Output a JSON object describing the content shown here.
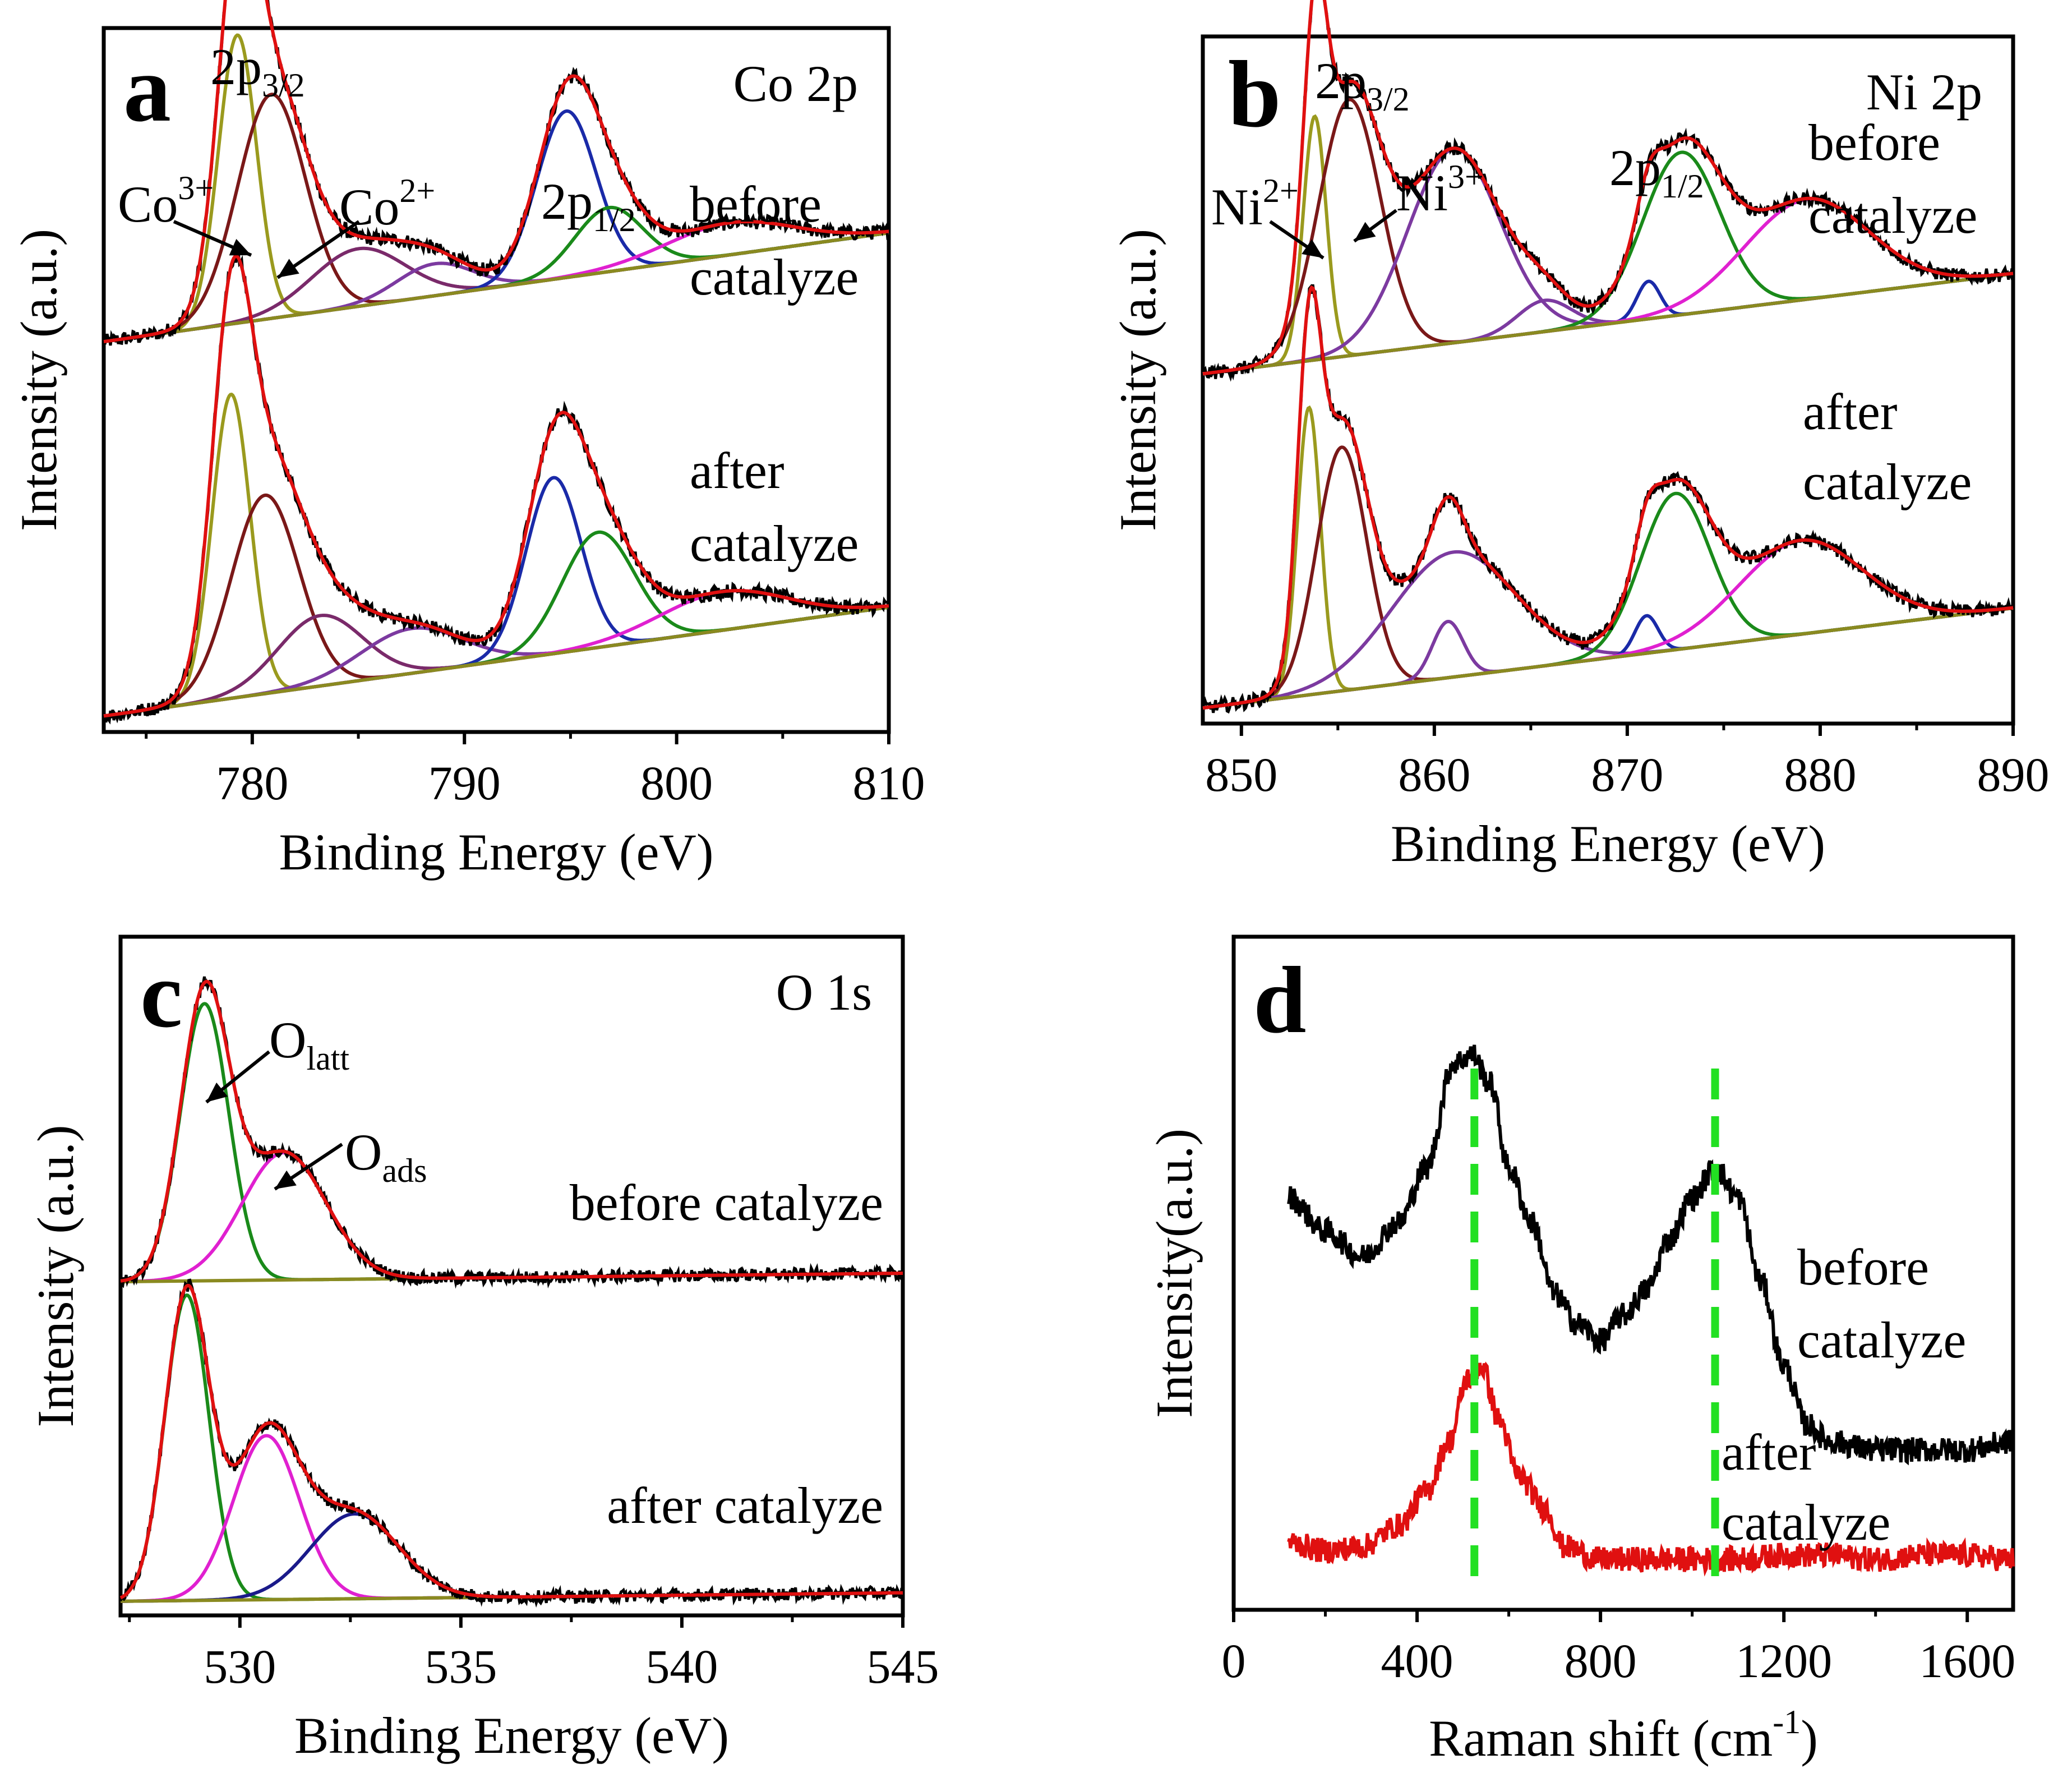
{
  "chart_data": [
    {
      "type": "line",
      "panel": "a",
      "title": "Co 2p",
      "xlabel": "Binding Energy (eV)",
      "ylabel": "Intensity (a.u.)",
      "xlim": [
        773,
        810
      ],
      "ylim": [
        0,
        2.2
      ],
      "xticks": [
        780,
        790,
        800,
        810
      ],
      "tick_labels": [
        "780",
        "790",
        "800",
        "810"
      ],
      "peak_labels": [
        {
          "text": "2p",
          "sub": "3/2",
          "pos": "above-main"
        },
        {
          "text": "Co",
          "sup": "3+",
          "pos": "left"
        },
        {
          "text": "Co",
          "sup": "2+",
          "pos": "right"
        },
        {
          "text": "2p",
          "sub": "1/2",
          "pos": "middle"
        }
      ],
      "series_labels": [
        [
          "before",
          "catalyze"
        ],
        [
          "after",
          "catalyze"
        ]
      ],
      "series": [
        {
          "name": "before catalyze",
          "offset": 1.22,
          "background": [
            0.0,
            0.34
          ],
          "spin_orbit_splitting": 15.2,
          "components": [
            {
              "center": 779.3,
              "height": 0.9,
              "width": 0.9,
              "color": "#9a9a1e"
            },
            {
              "center": 780.9,
              "height": 0.7,
              "width": 1.6,
              "color": "#7a1818"
            },
            {
              "center": 785.0,
              "height": 0.18,
              "width": 2.2,
              "color": "#7a2a6a"
            },
            {
              "center": 788.6,
              "height": 0.1,
              "width": 1.8,
              "color": "#7c3aa0"
            },
            {
              "center": 794.8,
              "height": 0.52,
              "width": 1.4,
              "color": "#1a2aa8"
            },
            {
              "center": 796.8,
              "height": 0.2,
              "width": 1.6,
              "color": "#1a8a1a"
            },
            {
              "center": 802.5,
              "height": 0.1,
              "width": 3.0,
              "color": "#e020d0"
            }
          ]
        },
        {
          "name": "after catalyze",
          "offset": 0.05,
          "background": [
            0.0,
            0.34
          ],
          "spin_orbit_splitting": 15.2,
          "components": [
            {
              "center": 779.0,
              "height": 0.95,
              "width": 0.9,
              "color": "#9a9a1e"
            },
            {
              "center": 780.6,
              "height": 0.62,
              "width": 1.6,
              "color": "#7a1818"
            },
            {
              "center": 783.2,
              "height": 0.22,
              "width": 2.0,
              "color": "#7a2a6a"
            },
            {
              "center": 787.5,
              "height": 0.14,
              "width": 2.4,
              "color": "#7c3aa0"
            },
            {
              "center": 794.2,
              "height": 0.55,
              "width": 1.3,
              "color": "#1a2aa8"
            },
            {
              "center": 796.3,
              "height": 0.36,
              "width": 1.7,
              "color": "#1a8a1a"
            },
            {
              "center": 802.2,
              "height": 0.12,
              "width": 3.0,
              "color": "#e020d0"
            }
          ]
        }
      ]
    },
    {
      "type": "line",
      "panel": "b",
      "title": "Ni 2p",
      "xlabel": "Binding Energy (eV)",
      "ylabel": "Intensity (a.u.)",
      "xlim": [
        848,
        890
      ],
      "ylim": [
        0,
        2.2
      ],
      "xticks": [
        850,
        860,
        870,
        880,
        890
      ],
      "tick_labels": [
        "850",
        "860",
        "870",
        "880",
        "890"
      ],
      "peak_labels": [
        {
          "text": "2p",
          "sub": "3/2",
          "pos": "above-main"
        },
        {
          "text": "Ni",
          "sup": "2+",
          "pos": "left"
        },
        {
          "text": "Ni",
          "sup": "3+",
          "pos": "right"
        },
        {
          "text": "2p",
          "sub": "1/2",
          "pos": "middle"
        }
      ],
      "series_labels": [
        [
          "before",
          "catalyze"
        ],
        [
          "after",
          "catalyze"
        ]
      ],
      "series": [
        {
          "name": "before catalyze",
          "offset": 1.12,
          "background": [
            0.0,
            0.32
          ],
          "components": [
            {
              "center": 853.8,
              "height": 0.78,
              "width": 0.6,
              "color": "#9a9a1e"
            },
            {
              "center": 855.6,
              "height": 0.82,
              "width": 1.6,
              "color": "#7a1818"
            },
            {
              "center": 861.0,
              "height": 0.62,
              "width": 2.4,
              "color": "#7c3aa0"
            },
            {
              "center": 865.7,
              "height": 0.1,
              "width": 1.4,
              "color": "#7c3aa0"
            },
            {
              "center": 871.1,
              "height": 0.12,
              "width": 0.6,
              "color": "#1a2aa8"
            },
            {
              "center": 872.8,
              "height": 0.52,
              "width": 2.0,
              "color": "#1a8a1a"
            },
            {
              "center": 879.3,
              "height": 0.32,
              "width": 3.2,
              "color": "#e020d0"
            }
          ]
        },
        {
          "name": "after catalyze",
          "offset": 0.05,
          "background": [
            0.0,
            0.32
          ],
          "components": [
            {
              "center": 853.5,
              "height": 0.92,
              "width": 0.6,
              "color": "#9a9a1e"
            },
            {
              "center": 855.2,
              "height": 0.78,
              "width": 1.3,
              "color": "#7a1818"
            },
            {
              "center": 861.0,
              "height": 0.4,
              "width": 3.2,
              "color": "#7c3aa0"
            },
            {
              "center": 860.7,
              "height": 0.18,
              "width": 0.8,
              "color": "#7c3aa0"
            },
            {
              "center": 871.0,
              "height": 0.12,
              "width": 0.6,
              "color": "#1a2aa8"
            },
            {
              "center": 872.5,
              "height": 0.5,
              "width": 1.8,
              "color": "#1a8a1a"
            },
            {
              "center": 879.0,
              "height": 0.3,
              "width": 3.2,
              "color": "#e020d0"
            }
          ]
        }
      ]
    },
    {
      "type": "line",
      "panel": "c",
      "title": "O 1s",
      "xlabel": "Binding Energy (eV)",
      "ylabel": "Intensity (a.u.)",
      "xlim": [
        527.3,
        545
      ],
      "ylim": [
        0,
        2.4
      ],
      "xticks": [
        530,
        535,
        540,
        545
      ],
      "tick_labels": [
        "530",
        "535",
        "540",
        "545"
      ],
      "peak_labels": [
        {
          "text": "O",
          "sub": "latt"
        },
        {
          "text": "O",
          "sub": "ads"
        }
      ],
      "series_labels": [
        "before catalyze",
        "after catalyze"
      ],
      "series": [
        {
          "name": "before catalyze",
          "offset": 1.18,
          "background": [
            0.0,
            0.03
          ],
          "components": [
            {
              "center": 529.2,
              "height": 0.98,
              "width": 0.55,
              "color": "#1a8a1a"
            },
            {
              "center": 531.0,
              "height": 0.45,
              "width": 0.95,
              "color": "#e020d0"
            }
          ]
        },
        {
          "name": "after catalyze",
          "offset": 0.05,
          "background": [
            0.0,
            0.03
          ],
          "components": [
            {
              "center": 528.8,
              "height": 1.08,
              "width": 0.5,
              "color": "#1a8a1a"
            },
            {
              "center": 530.6,
              "height": 0.58,
              "width": 0.75,
              "color": "#e020d0"
            },
            {
              "center": 532.6,
              "height": 0.3,
              "width": 1.0,
              "color": "#1a1a8a"
            }
          ]
        }
      ]
    },
    {
      "type": "line",
      "panel": "d",
      "xlabel": "Raman shift (cm",
      "xlabel_sup": "-1",
      "xlabel_end": ")",
      "ylabel": "Intensity(a.u.)",
      "xlim": [
        0,
        1700
      ],
      "ylim": [
        0,
        1.6
      ],
      "xticks": [
        0,
        400,
        800,
        1200,
        1600
      ],
      "tick_labels": [
        "0",
        "400",
        "800",
        "1200",
        "1600"
      ],
      "reference_lines": [
        525,
        1050
      ],
      "series_labels": [
        [
          "before",
          "catalyze"
        ],
        [
          "after",
          "catalyze"
        ]
      ],
      "series": [
        {
          "name": "before catalyze",
          "color": "#000000",
          "x": [
            120,
            200,
            280,
            360,
            420,
            480,
            520,
            560,
            600,
            650,
            700,
            750,
            800,
            850,
            900,
            950,
            1000,
            1050,
            1100,
            1150,
            1200,
            1250,
            1300,
            1400,
            1500,
            1600,
            1700
          ],
          "y": [
            0.98,
            0.9,
            0.84,
            0.92,
            1.05,
            1.3,
            1.32,
            1.25,
            1.05,
            0.92,
            0.75,
            0.68,
            0.64,
            0.7,
            0.76,
            0.88,
            0.98,
            1.05,
            0.98,
            0.78,
            0.58,
            0.44,
            0.4,
            0.38,
            0.38,
            0.38,
            0.4
          ]
        },
        {
          "name": "after catalyze",
          "color": "#e01010",
          "x": [
            120,
            200,
            280,
            360,
            420,
            470,
            510,
            540,
            580,
            620,
            680,
            720,
            800,
            900,
            1000,
            1100,
            1200,
            1300,
            1400,
            1500,
            1600,
            1700
          ],
          "y": [
            0.16,
            0.14,
            0.15,
            0.2,
            0.28,
            0.4,
            0.55,
            0.58,
            0.45,
            0.32,
            0.24,
            0.15,
            0.12,
            0.12,
            0.12,
            0.12,
            0.13,
            0.13,
            0.12,
            0.13,
            0.13,
            0.12
          ]
        }
      ]
    }
  ]
}
